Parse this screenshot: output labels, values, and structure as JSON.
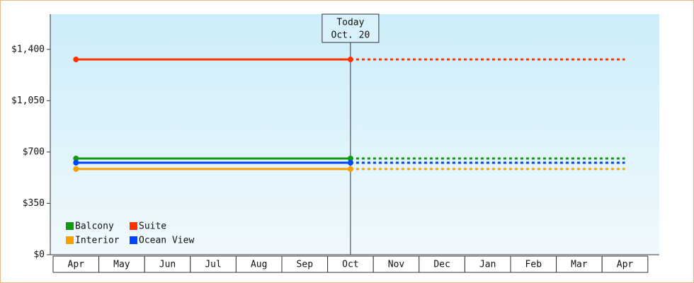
{
  "chart_data": {
    "type": "line",
    "categories": [
      "Apr",
      "May",
      "Jun",
      "Jul",
      "Aug",
      "Sep",
      "Oct",
      "Nov",
      "Dec",
      "Jan",
      "Feb",
      "Mar",
      "Apr"
    ],
    "series": [
      {
        "name": "Balcony",
        "color": "#119911",
        "values": [
          656,
          656,
          656,
          656,
          656,
          656,
          656,
          null,
          null,
          null,
          null,
          null,
          null
        ],
        "projected": [
          null,
          null,
          null,
          null,
          null,
          null,
          656,
          656,
          656,
          656,
          656,
          656,
          656
        ]
      },
      {
        "name": "Suite",
        "color": "#ff3300",
        "values": [
          1331,
          1331,
          1331,
          1331,
          1331,
          1331,
          1331,
          null,
          null,
          null,
          null,
          null,
          null
        ],
        "projected": [
          null,
          null,
          null,
          null,
          null,
          null,
          1331,
          1331,
          1331,
          1331,
          1331,
          1331,
          1331
        ]
      },
      {
        "name": "Interior",
        "color": "#f5a000",
        "values": [
          584,
          584,
          584,
          584,
          584,
          584,
          584,
          null,
          null,
          null,
          null,
          null,
          null
        ],
        "projected": [
          null,
          null,
          null,
          null,
          null,
          null,
          584,
          584,
          584,
          584,
          584,
          584,
          584
        ]
      },
      {
        "name": "Ocean View",
        "color": "#0044ff",
        "values": [
          627,
          627,
          627,
          627,
          627,
          627,
          627,
          null,
          null,
          null,
          null,
          null,
          null
        ],
        "projected": [
          null,
          null,
          null,
          null,
          null,
          null,
          627,
          627,
          627,
          627,
          627,
          627,
          627
        ]
      }
    ],
    "annotation": {
      "lines": [
        "Today",
        "Oct. 20"
      ]
    },
    "ylim": [
      0,
      1640
    ],
    "yticks": [
      {
        "value": 0,
        "label": "$0"
      },
      {
        "value": 350,
        "label": "$350"
      },
      {
        "value": 700,
        "label": "$700"
      },
      {
        "value": 1050,
        "label": "$1,050"
      },
      {
        "value": 1400,
        "label": "$1,400"
      }
    ],
    "legend": "bottom-left"
  }
}
